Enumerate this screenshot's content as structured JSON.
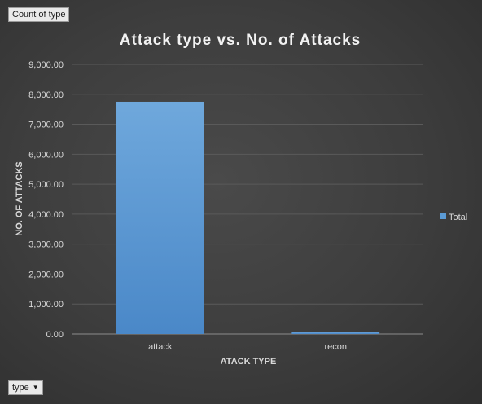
{
  "pivot": {
    "value_field": "Count of type",
    "axis_field": "type"
  },
  "colors": {
    "bar": "#5b9bd5",
    "grid": "#5a5a5a",
    "axis": "#8c8c8c"
  },
  "chart_data": {
    "type": "bar",
    "title": "Attack type vs. No. of Attacks",
    "xlabel": "ATACK TYPE",
    "ylabel": "NO. OF ATTACKS",
    "categories": [
      "attack",
      "recon"
    ],
    "series": [
      {
        "name": "Total",
        "values": [
          7750,
          70
        ]
      }
    ],
    "ylim": [
      0,
      9000
    ],
    "yticks": [
      "0.00",
      "1,000.00",
      "2,000.00",
      "3,000.00",
      "4,000.00",
      "5,000.00",
      "6,000.00",
      "7,000.00",
      "8,000.00",
      "9,000.00"
    ],
    "grid": true,
    "legend": "right"
  }
}
